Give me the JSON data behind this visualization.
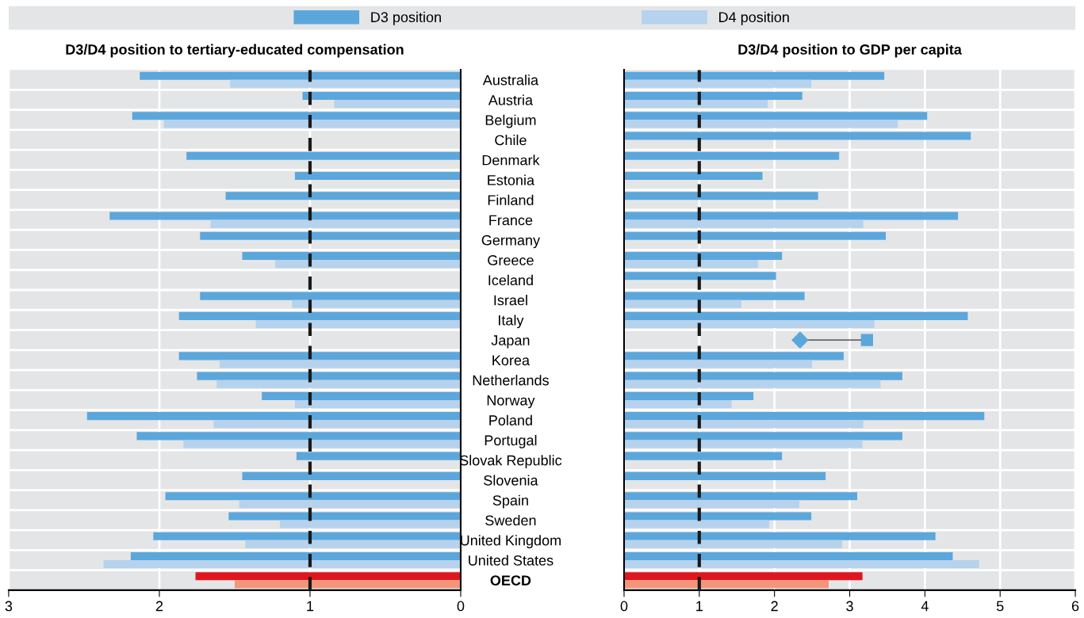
{
  "chart_data": [
    {
      "type": "bar",
      "orientation": "horizontal",
      "title": "D3/D4 position to tertiary-educated compensation",
      "categories": [
        "Australia",
        "Austria",
        "Belgium",
        "Chile",
        "Denmark",
        "Estonia",
        "Finland",
        "France",
        "Germany",
        "Greece",
        "Iceland",
        "Israel",
        "Italy",
        "Japan",
        "Korea",
        "Netherlands",
        "Norway",
        "Poland",
        "Portugal",
        "Slovak Republic",
        "Slovenia",
        "Spain",
        "Sweden",
        "United Kingdom",
        "United States",
        "OECD"
      ],
      "series": [
        {
          "name": "D3 position",
          "color": "#5ba7dc",
          "colors": [
            "#5ba7dc",
            "#5ba7dc",
            "#5ba7dc",
            "#5ba7dc",
            "#5ba7dc",
            "#5ba7dc",
            "#5ba7dc",
            "#5ba7dc",
            "#5ba7dc",
            "#5ba7dc",
            "#5ba7dc",
            "#5ba7dc",
            "#5ba7dc",
            "#5ba7dc",
            "#5ba7dc",
            "#5ba7dc",
            "#5ba7dc",
            "#5ba7dc",
            "#5ba7dc",
            "#5ba7dc",
            "#5ba7dc",
            "#5ba7dc",
            "#5ba7dc",
            "#5ba7dc",
            "#5ba7dc",
            "#e0161e"
          ],
          "values": [
            2.13,
            1.05,
            2.18,
            null,
            1.82,
            1.1,
            1.56,
            2.33,
            1.73,
            1.45,
            null,
            1.73,
            1.87,
            null,
            1.87,
            1.75,
            1.32,
            2.48,
            2.15,
            1.09,
            1.45,
            1.96,
            1.54,
            2.04,
            2.19,
            1.76
          ]
        },
        {
          "name": "D4 position",
          "color": "#b6d2ec",
          "colors": [
            "#b6d2ec",
            "#b6d2ec",
            "#b6d2ec",
            "#b6d2ec",
            "#b6d2ec",
            "#b6d2ec",
            "#b6d2ec",
            "#b6d2ec",
            "#b6d2ec",
            "#b6d2ec",
            "#b6d2ec",
            "#b6d2ec",
            "#b6d2ec",
            "#b6d2ec",
            "#b6d2ec",
            "#b6d2ec",
            "#b6d2ec",
            "#b6d2ec",
            "#b6d2ec",
            "#b6d2ec",
            "#b6d2ec",
            "#b6d2ec",
            "#b6d2ec",
            "#b6d2ec",
            "#b6d2ec",
            "#f4957a"
          ],
          "values": [
            1.53,
            0.84,
            1.97,
            null,
            null,
            null,
            null,
            1.66,
            null,
            1.23,
            null,
            1.12,
            1.36,
            null,
            1.6,
            1.62,
            1.1,
            1.64,
            1.84,
            null,
            null,
            1.47,
            1.2,
            1.43,
            2.37,
            1.5
          ]
        }
      ],
      "xlim": [
        3,
        0
      ],
      "xticks": [
        3,
        2,
        1,
        0
      ],
      "grid": "x",
      "legend": "top",
      "tick_labels": "x",
      "ref_lines": [
        {
          "axis": "x",
          "value": 1,
          "color": "#1a1a1a",
          "line_style": "dashed"
        }
      ]
    },
    {
      "type": "bar",
      "orientation": "horizontal",
      "title": "D3/D4 position to GDP per capita",
      "categories": [
        "Australia",
        "Austria",
        "Belgium",
        "Chile",
        "Denmark",
        "Estonia",
        "Finland",
        "France",
        "Germany",
        "Greece",
        "Iceland",
        "Israel",
        "Italy",
        "Japan",
        "Korea",
        "Netherlands",
        "Norway",
        "Poland",
        "Portugal",
        "Slovak Republic",
        "Slovenia",
        "Spain",
        "Sweden",
        "United Kingdom",
        "United States",
        "OECD"
      ],
      "series": [
        {
          "name": "D3 position",
          "color": "#5ba7dc",
          "colors": [
            "#5ba7dc",
            "#5ba7dc",
            "#5ba7dc",
            "#5ba7dc",
            "#5ba7dc",
            "#5ba7dc",
            "#5ba7dc",
            "#5ba7dc",
            "#5ba7dc",
            "#5ba7dc",
            "#5ba7dc",
            "#5ba7dc",
            "#5ba7dc",
            "#5ba7dc",
            "#5ba7dc",
            "#5ba7dc",
            "#5ba7dc",
            "#5ba7dc",
            "#5ba7dc",
            "#5ba7dc",
            "#5ba7dc",
            "#5ba7dc",
            "#5ba7dc",
            "#5ba7dc",
            "#5ba7dc",
            "#e0161e"
          ],
          "values": [
            3.46,
            2.37,
            4.03,
            4.61,
            2.86,
            1.84,
            2.58,
            4.44,
            3.48,
            2.1,
            2.02,
            2.4,
            4.57,
            null,
            2.92,
            3.7,
            1.72,
            4.79,
            3.7,
            2.1,
            2.68,
            3.1,
            2.49,
            4.14,
            4.37,
            3.17
          ]
        },
        {
          "name": "D4 position",
          "color": "#b6d2ec",
          "colors": [
            "#b6d2ec",
            "#b6d2ec",
            "#b6d2ec",
            "#b6d2ec",
            "#b6d2ec",
            "#b6d2ec",
            "#b6d2ec",
            "#b6d2ec",
            "#b6d2ec",
            "#b6d2ec",
            "#b6d2ec",
            "#b6d2ec",
            "#b6d2ec",
            "#b6d2ec",
            "#b6d2ec",
            "#b6d2ec",
            "#b6d2ec",
            "#b6d2ec",
            "#b6d2ec",
            "#b6d2ec",
            "#b6d2ec",
            "#b6d2ec",
            "#b6d2ec",
            "#b6d2ec",
            "#b6d2ec",
            "#f4957a"
          ],
          "values": [
            2.49,
            1.91,
            3.64,
            null,
            null,
            null,
            null,
            3.18,
            null,
            1.78,
            null,
            1.56,
            3.33,
            null,
            2.5,
            3.41,
            1.43,
            3.18,
            3.17,
            null,
            null,
            2.33,
            1.93,
            2.9,
            4.72,
            2.72
          ]
        },
        {
          "type": "scatter",
          "marker": "diamond",
          "color": "#5ba7dc",
          "values": [
            null,
            null,
            null,
            null,
            null,
            null,
            null,
            null,
            null,
            null,
            null,
            null,
            null,
            2.34,
            null,
            null,
            null,
            null,
            null,
            null,
            null,
            null,
            null,
            null,
            null,
            null
          ]
        },
        {
          "type": "scatter",
          "marker": "square",
          "color": "#5ba7dc",
          "values": [
            null,
            null,
            null,
            null,
            null,
            null,
            null,
            null,
            null,
            null,
            null,
            null,
            null,
            3.23,
            null,
            null,
            null,
            null,
            null,
            null,
            null,
            null,
            null,
            null,
            null,
            null
          ]
        }
      ],
      "xlim": [
        0,
        6
      ],
      "xticks": [
        0,
        1,
        2,
        3,
        4,
        5,
        6
      ],
      "grid": "x",
      "legend": "top",
      "ref_lines": [
        {
          "axis": "x",
          "value": 1,
          "color": "#1a1a1a",
          "line_style": "dashed"
        }
      ]
    }
  ]
}
